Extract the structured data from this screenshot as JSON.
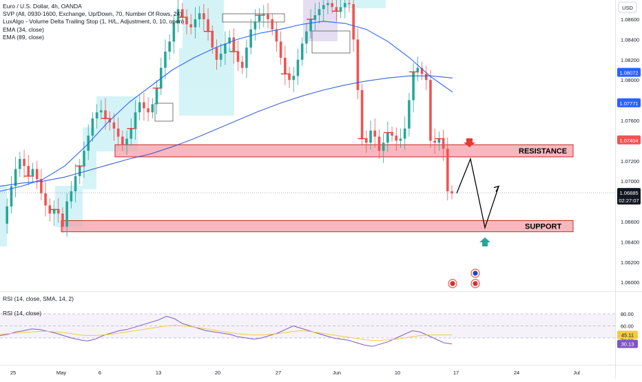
{
  "legend": {
    "title": "Euro / U.S. Dollar, 4h, OANDA",
    "indicators": [
      "SVP (All, 0930-1600, Exchange, Up/Down, 70, Number Of Rows, 24)",
      "LuxAlgo - Volume Delta Trailing Stop (1, H/L, Adjustment, 0, 10, open)",
      "EMA (34, close)",
      "EMA (89, close)"
    ]
  },
  "currency_badge": "USD",
  "rsi_legend": {
    "sma": "RSI (14, close, SMA, 14, 2)",
    "plain": "RSI (14, close)"
  },
  "zones": {
    "resistance": "RESISTANCE",
    "support": "SUPPORT"
  },
  "colors": {
    "up_candle": "#26a69a",
    "down_candle": "#ef5350",
    "ema34": "#2962ff",
    "ema89": "#1848cc",
    "zone_fill": "#f3a0a8",
    "zone_border": "#c62828",
    "rsi_line": "#7e57c2",
    "rsi_sma": "#f2cc3d",
    "arrow_down": "#e53935",
    "arrow_up": "#26a69a"
  },
  "chart_data": [
    {
      "type": "line",
      "name": "EURUSD 4h price",
      "x_ticks": [
        "25",
        "May",
        "6",
        "13",
        "20",
        "27",
        "Jun",
        "10",
        "17",
        "24",
        "Jul"
      ],
      "y_ticks": [
        "1.08600",
        "1.08400",
        "1.08200",
        "1.08000",
        "1.07800",
        "1.07600",
        "1.07400",
        "1.07200",
        "1.07000",
        "1.06800",
        "1.06600",
        "1.06400",
        "1.06200",
        "1.06000"
      ],
      "ylim": [
        1.0597,
        1.0886
      ],
      "series": [
        {
          "values": [
            1.0658,
            1.0675,
            1.0695,
            1.0712,
            1.0722,
            1.0715,
            1.0705,
            1.0712,
            1.0702,
            1.0688,
            1.0676,
            1.0668,
            1.0672,
            1.0668,
            1.0655,
            1.068,
            1.069,
            1.0705,
            1.0715,
            1.073,
            1.0745,
            1.0762,
            1.0768,
            1.077,
            1.0762,
            1.0758,
            1.0752,
            1.0744,
            1.0736,
            1.0742,
            1.0752,
            1.0768,
            1.0778,
            1.0772,
            1.0768,
            1.0776,
            1.0792,
            1.0812,
            1.0828,
            1.0838,
            1.0856,
            1.087,
            1.0862,
            1.0855,
            1.0852,
            1.086,
            1.0866,
            1.086,
            1.0848,
            1.0832,
            1.082,
            1.0826,
            1.0836,
            1.0842,
            1.0828,
            1.0818,
            1.0812,
            1.0832,
            1.085,
            1.0858,
            1.0864,
            1.0865,
            1.086,
            1.085,
            1.0838,
            1.0822,
            1.0806,
            1.08,
            1.0804,
            1.082,
            1.0836,
            1.0848,
            1.086,
            1.0864,
            1.087,
            1.0874,
            1.0876,
            1.0872,
            1.0868,
            1.0872,
            1.0876,
            1.0875,
            1.084,
            1.079,
            1.0742,
            1.0738,
            1.075,
            1.0744,
            1.073,
            1.0738,
            1.0748,
            1.0745,
            1.074,
            1.0742,
            1.0752,
            1.078,
            1.0808,
            1.0812,
            1.0806,
            1.08,
            1.074,
            1.0738,
            1.0742,
            1.0732,
            1.069,
            1.0688
          ]
        },
        {
          "name": "EMA (34, close)",
          "values": [
            1.069,
            1.0695,
            1.0702,
            1.0715,
            1.0735,
            1.0758,
            1.0778,
            1.0794,
            1.081,
            1.0822,
            1.0832,
            1.084,
            1.0846,
            1.085,
            1.0855,
            1.0858,
            1.0856,
            1.085,
            1.0838,
            1.0822,
            1.0803,
            1.0788
          ]
        },
        {
          "name": "EMA (89, close)",
          "values": [
            1.0695,
            1.0698,
            1.07,
            1.0704,
            1.071,
            1.0716,
            1.0722,
            1.0727,
            1.0734,
            1.0742,
            1.0751,
            1.076,
            1.0769,
            1.0777,
            1.0784,
            1.079,
            1.0795,
            1.0799,
            1.0802,
            1.0804,
            1.0804,
            1.0802
          ]
        }
      ],
      "price_labels": [
        "1.08072",
        "1.07771",
        "1.07404",
        "1.06885"
      ],
      "countdown": "02:27:07",
      "zones": [
        {
          "label": "RESISTANCE",
          "range": [
            1.0724,
            1.0736
          ]
        },
        {
          "label": "SUPPORT",
          "range": [
            1.065,
            1.0661
          ]
        }
      ],
      "projection": [
        1.0688,
        1.0722,
        1.0654,
        1.0695
      ]
    },
    {
      "type": "line",
      "name": "RSI",
      "y_ticks": [
        "80.00",
        "60.00",
        "40.00"
      ],
      "ylim": [
        20,
        90
      ],
      "value_labels": [
        "45.11",
        "30.13"
      ],
      "series": [
        {
          "values": [
            44,
            46,
            50,
            52,
            55,
            54,
            51,
            48,
            44,
            40,
            37,
            35,
            38,
            44,
            48,
            52,
            54,
            58,
            62,
            66,
            70,
            76,
            72,
            64,
            60,
            56,
            52,
            50,
            48,
            46,
            42,
            40,
            38,
            40,
            44,
            48,
            54,
            60,
            56,
            52,
            48,
            44,
            40,
            38,
            36,
            32,
            28,
            26,
            30,
            34,
            40,
            46,
            52,
            50,
            44,
            38,
            32,
            30
          ]
        },
        {
          "values": [
            46,
            47,
            48,
            49,
            50,
            51,
            51,
            50,
            49,
            47,
            45,
            44,
            44,
            45,
            46,
            48,
            50,
            52,
            54,
            56,
            58,
            60,
            61,
            60,
            59,
            57,
            55,
            53,
            51,
            49,
            47,
            46,
            45,
            45,
            46,
            47,
            49,
            51,
            52,
            51,
            49,
            47,
            45,
            43,
            41,
            39,
            37,
            36,
            36,
            37,
            38,
            40,
            42,
            44,
            45,
            45,
            45,
            45
          ]
        }
      ]
    }
  ]
}
